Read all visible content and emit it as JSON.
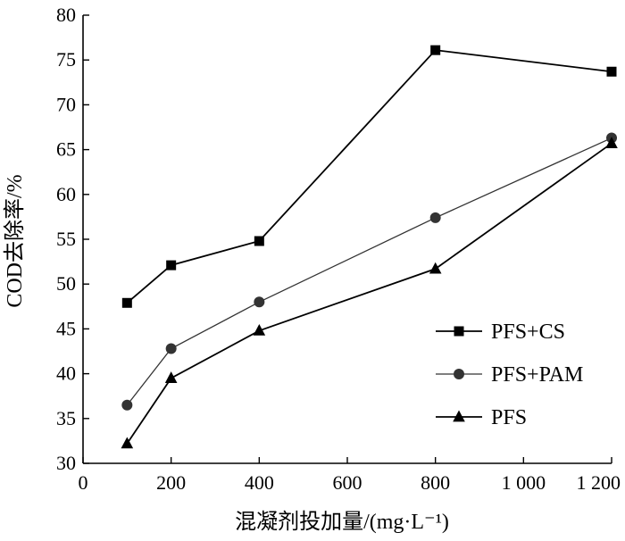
{
  "chart_data": {
    "type": "line",
    "xlabel": "混凝剂投加量/(mg·L⁻¹)",
    "ylabel": "COD去除率/%",
    "xlim": [
      0,
      1200
    ],
    "ylim": [
      30,
      80
    ],
    "xticks": [
      0,
      200,
      400,
      600,
      800,
      1000,
      1200
    ],
    "xtick_labels": [
      "0",
      "200",
      "400",
      "600",
      "800",
      "1 000",
      "1 200"
    ],
    "yticks": [
      30,
      35,
      40,
      45,
      50,
      55,
      60,
      65,
      70,
      75,
      80
    ],
    "ytick_labels": [
      "30",
      "35",
      "40",
      "45",
      "50",
      "55",
      "60",
      "65",
      "70",
      "75",
      "80"
    ],
    "grid": false,
    "legend_position": "bottom-right",
    "series": [
      {
        "name": "PFS+CS",
        "marker": "square",
        "color": "#000000",
        "x": [
          100,
          200,
          400,
          800,
          1200
        ],
        "y": [
          47.9,
          52.1,
          54.8,
          76.1,
          73.7
        ]
      },
      {
        "name": "PFS+PAM",
        "marker": "circle",
        "color": "#333333",
        "x": [
          100,
          200,
          400,
          800,
          1200
        ],
        "y": [
          36.5,
          42.8,
          48.0,
          57.4,
          66.3
        ]
      },
      {
        "name": "PFS",
        "marker": "triangle",
        "color": "#000000",
        "x": [
          100,
          200,
          400,
          800,
          1200
        ],
        "y": [
          32.2,
          39.5,
          44.8,
          51.7,
          65.7
        ]
      }
    ]
  }
}
